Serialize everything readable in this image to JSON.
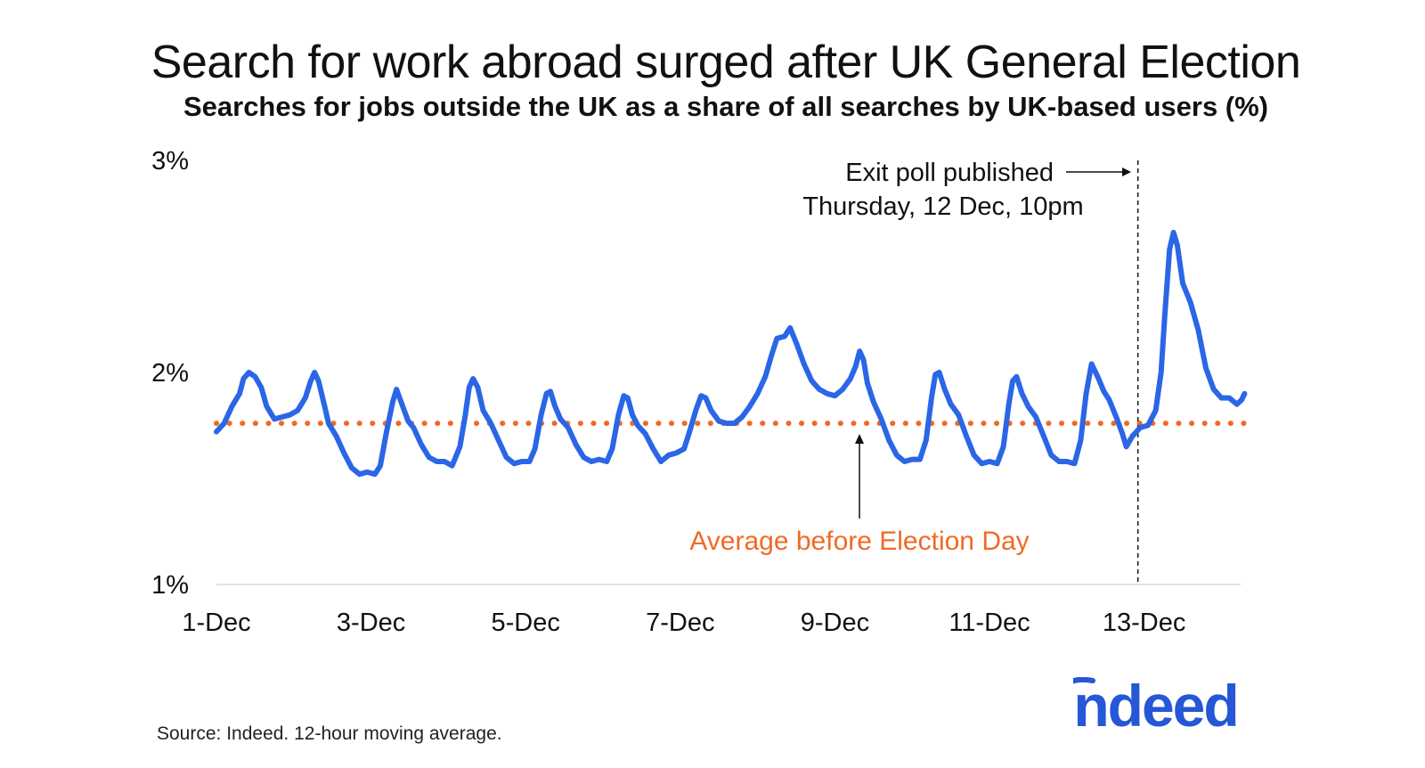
{
  "chart_data": {
    "type": "line",
    "title": "Search for work abroad surged after UK General Election",
    "subtitle": "Searches for jobs outside the UK as a share of all searches by UK-based users (%)",
    "xlabel": "",
    "ylabel": "",
    "x_tick_labels": [
      "1-Dec",
      "3-Dec",
      "5-Dec",
      "7-Dec",
      "9-Dec",
      "11-Dec",
      "13-Dec"
    ],
    "y_tick_labels": [
      "1%",
      "2%",
      "3%"
    ],
    "xlim_days": [
      0,
      13.3
    ],
    "ylim": [
      1,
      3
    ],
    "grid": false,
    "series": [
      {
        "color": "#2a66e6",
        "points": [
          [
            0.0,
            1.72
          ],
          [
            0.1,
            1.76
          ],
          [
            0.2,
            1.84
          ],
          [
            0.3,
            1.9
          ],
          [
            0.35,
            1.97
          ],
          [
            0.42,
            2.0
          ],
          [
            0.5,
            1.98
          ],
          [
            0.58,
            1.93
          ],
          [
            0.65,
            1.84
          ],
          [
            0.75,
            1.78
          ],
          [
            0.85,
            1.79
          ],
          [
            0.95,
            1.8
          ],
          [
            1.05,
            1.82
          ],
          [
            1.15,
            1.88
          ],
          [
            1.22,
            1.96
          ],
          [
            1.27,
            2.0
          ],
          [
            1.32,
            1.96
          ],
          [
            1.4,
            1.84
          ],
          [
            1.45,
            1.76
          ],
          [
            1.55,
            1.7
          ],
          [
            1.65,
            1.62
          ],
          [
            1.75,
            1.55
          ],
          [
            1.85,
            1.52
          ],
          [
            1.95,
            1.53
          ],
          [
            2.05,
            1.52
          ],
          [
            2.12,
            1.56
          ],
          [
            2.2,
            1.72
          ],
          [
            2.28,
            1.86
          ],
          [
            2.33,
            1.92
          ],
          [
            2.4,
            1.85
          ],
          [
            2.48,
            1.77
          ],
          [
            2.55,
            1.74
          ],
          [
            2.65,
            1.66
          ],
          [
            2.75,
            1.6
          ],
          [
            2.85,
            1.58
          ],
          [
            2.95,
            1.58
          ],
          [
            3.05,
            1.56
          ],
          [
            3.15,
            1.65
          ],
          [
            3.22,
            1.8
          ],
          [
            3.27,
            1.93
          ],
          [
            3.32,
            1.97
          ],
          [
            3.38,
            1.93
          ],
          [
            3.45,
            1.82
          ],
          [
            3.55,
            1.76
          ],
          [
            3.65,
            1.68
          ],
          [
            3.75,
            1.6
          ],
          [
            3.85,
            1.57
          ],
          [
            3.95,
            1.58
          ],
          [
            4.05,
            1.58
          ],
          [
            4.12,
            1.64
          ],
          [
            4.2,
            1.8
          ],
          [
            4.27,
            1.9
          ],
          [
            4.32,
            1.91
          ],
          [
            4.38,
            1.84
          ],
          [
            4.45,
            1.78
          ],
          [
            4.55,
            1.74
          ],
          [
            4.65,
            1.66
          ],
          [
            4.75,
            1.6
          ],
          [
            4.85,
            1.58
          ],
          [
            4.95,
            1.59
          ],
          [
            5.05,
            1.58
          ],
          [
            5.12,
            1.64
          ],
          [
            5.2,
            1.8
          ],
          [
            5.27,
            1.89
          ],
          [
            5.32,
            1.88
          ],
          [
            5.38,
            1.8
          ],
          [
            5.45,
            1.75
          ],
          [
            5.55,
            1.71
          ],
          [
            5.65,
            1.64
          ],
          [
            5.75,
            1.58
          ],
          [
            5.85,
            1.61
          ],
          [
            5.95,
            1.62
          ],
          [
            6.05,
            1.64
          ],
          [
            6.12,
            1.72
          ],
          [
            6.2,
            1.82
          ],
          [
            6.27,
            1.89
          ],
          [
            6.33,
            1.88
          ],
          [
            6.4,
            1.82
          ],
          [
            6.5,
            1.77
          ],
          [
            6.6,
            1.76
          ],
          [
            6.7,
            1.76
          ],
          [
            6.8,
            1.79
          ],
          [
            6.9,
            1.84
          ],
          [
            7.0,
            1.9
          ],
          [
            7.1,
            1.98
          ],
          [
            7.18,
            2.08
          ],
          [
            7.25,
            2.16
          ],
          [
            7.35,
            2.17
          ],
          [
            7.42,
            2.21
          ],
          [
            7.5,
            2.14
          ],
          [
            7.6,
            2.04
          ],
          [
            7.7,
            1.96
          ],
          [
            7.8,
            1.92
          ],
          [
            7.9,
            1.9
          ],
          [
            8.0,
            1.89
          ],
          [
            8.1,
            1.92
          ],
          [
            8.2,
            1.97
          ],
          [
            8.27,
            2.03
          ],
          [
            8.32,
            2.1
          ],
          [
            8.37,
            2.06
          ],
          [
            8.42,
            1.95
          ],
          [
            8.5,
            1.86
          ],
          [
            8.6,
            1.78
          ],
          [
            8.7,
            1.68
          ],
          [
            8.8,
            1.61
          ],
          [
            8.9,
            1.58
          ],
          [
            9.0,
            1.59
          ],
          [
            9.1,
            1.59
          ],
          [
            9.18,
            1.68
          ],
          [
            9.25,
            1.88
          ],
          [
            9.3,
            1.99
          ],
          [
            9.35,
            2.0
          ],
          [
            9.42,
            1.92
          ],
          [
            9.5,
            1.85
          ],
          [
            9.6,
            1.8
          ],
          [
            9.7,
            1.7
          ],
          [
            9.8,
            1.61
          ],
          [
            9.9,
            1.57
          ],
          [
            10.0,
            1.58
          ],
          [
            10.1,
            1.57
          ],
          [
            10.18,
            1.65
          ],
          [
            10.25,
            1.85
          ],
          [
            10.3,
            1.96
          ],
          [
            10.35,
            1.98
          ],
          [
            10.42,
            1.9
          ],
          [
            10.5,
            1.84
          ],
          [
            10.6,
            1.79
          ],
          [
            10.7,
            1.7
          ],
          [
            10.8,
            1.61
          ],
          [
            10.9,
            1.58
          ],
          [
            11.0,
            1.58
          ],
          [
            11.1,
            1.57
          ],
          [
            11.18,
            1.68
          ],
          [
            11.25,
            1.9
          ],
          [
            11.32,
            2.04
          ],
          [
            11.4,
            1.98
          ],
          [
            11.48,
            1.91
          ],
          [
            11.55,
            1.87
          ],
          [
            11.65,
            1.78
          ],
          [
            11.72,
            1.71
          ],
          [
            11.77,
            1.65
          ],
          [
            11.85,
            1.7
          ],
          [
            11.95,
            1.74
          ],
          [
            12.05,
            1.75
          ],
          [
            12.15,
            1.82
          ],
          [
            12.22,
            2.0
          ],
          [
            12.27,
            2.28
          ],
          [
            12.33,
            2.58
          ],
          [
            12.38,
            2.66
          ],
          [
            12.43,
            2.6
          ],
          [
            12.5,
            2.42
          ],
          [
            12.6,
            2.33
          ],
          [
            12.7,
            2.2
          ],
          [
            12.8,
            2.02
          ],
          [
            12.9,
            1.92
          ],
          [
            13.0,
            1.88
          ],
          [
            13.1,
            1.88
          ],
          [
            13.2,
            1.85
          ],
          [
            13.26,
            1.87
          ],
          [
            13.3,
            1.9
          ]
        ]
      }
    ],
    "reference_line": {
      "label": "Average before Election Day",
      "value": 1.76,
      "color": "#f06a25",
      "style": "dotted"
    },
    "event_marker": {
      "label_line1": "Exit poll published",
      "label_line2": "Thursday, 12 Dec, 10pm",
      "x_day": 11.92,
      "style": "dashed"
    }
  },
  "footer": {
    "source": "Source: Indeed. 12-hour moving average."
  },
  "logo": {
    "text": "indeed",
    "color": "#2557d6"
  }
}
